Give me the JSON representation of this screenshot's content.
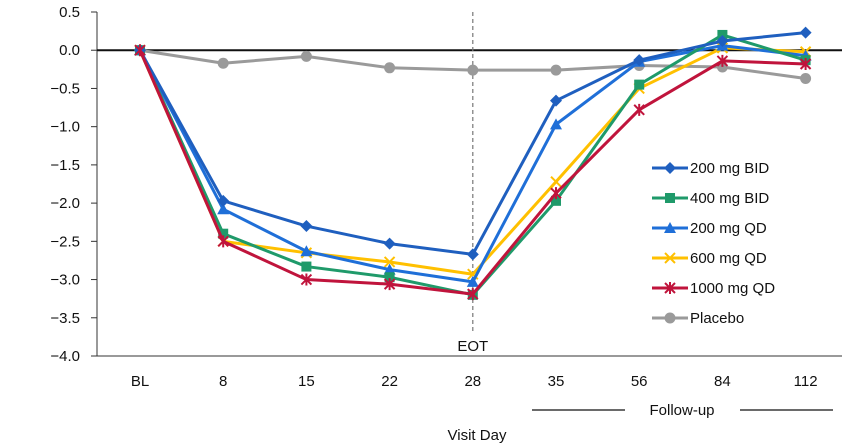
{
  "chart_data": {
    "type": "line",
    "categories": [
      "BL",
      "8",
      "15",
      "22",
      "28",
      "35",
      "56",
      "84",
      "112"
    ],
    "xlabel": "Visit Day",
    "ylabel": "",
    "ylim": [
      -4.0,
      0.5
    ],
    "yticks": [
      "0.5",
      "0.0",
      "-0.5",
      "-1.0",
      "-1.5",
      "-2.0",
      "-2.5",
      "-3.0",
      "-3.5",
      "-4.0"
    ],
    "grid": false,
    "legend_position": "right",
    "annotations": {
      "eot_label": "EOT",
      "followup_label": "Follow-up"
    },
    "series": [
      {
        "name": "200 mg BID",
        "color": "#1f5fbf",
        "marker": "diamond",
        "values": [
          0.0,
          -1.97,
          -2.3,
          -2.53,
          -2.67,
          -0.66,
          -0.13,
          0.12,
          0.23
        ]
      },
      {
        "name": "400 mg BID",
        "color": "#1f9a6a",
        "marker": "square",
        "values": [
          0.0,
          -2.4,
          -2.83,
          -2.97,
          -3.2,
          -1.97,
          -0.45,
          0.2,
          -0.13
        ]
      },
      {
        "name": "200 mg QD",
        "color": "#1f6fd8",
        "marker": "triangle",
        "values": [
          0.0,
          -2.08,
          -2.63,
          -2.87,
          -3.03,
          -0.97,
          -0.15,
          0.06,
          -0.07
        ]
      },
      {
        "name": "600 mg QD",
        "color": "#ffc000",
        "marker": "x",
        "values": [
          0.0,
          -2.5,
          -2.65,
          -2.77,
          -2.93,
          -1.72,
          -0.5,
          0.03,
          -0.02
        ]
      },
      {
        "name": "1000 mg QD",
        "color": "#c0143c",
        "marker": "star",
        "values": [
          0.0,
          -2.5,
          -3.0,
          -3.06,
          -3.19,
          -1.87,
          -0.78,
          -0.14,
          -0.18
        ]
      },
      {
        "name": "Placebo",
        "color": "#9a9a9a",
        "marker": "circle",
        "values": [
          0.0,
          -0.17,
          -0.08,
          -0.23,
          -0.26,
          -0.26,
          -0.2,
          -0.22,
          -0.37
        ]
      }
    ]
  }
}
